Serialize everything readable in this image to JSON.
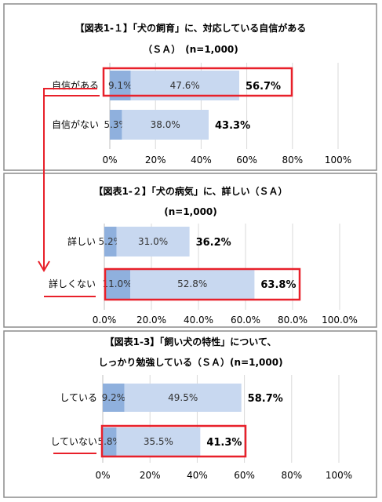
{
  "colors": {
    "seg1": "#8fb0dd",
    "seg2": "#c8d8f0",
    "highlight": "#e8202a",
    "grid": "#d9d9d9"
  },
  "chart_data": [
    {
      "type": "bar",
      "orientation": "horizontal",
      "stacked": true,
      "title_lines": [
        "【図表1-１】「犬の飼育」に、対応している自信がある",
        "（ＳＡ）　(n=1,000)"
      ],
      "categories": [
        "自信がある",
        "自信がない"
      ],
      "series": [
        {
          "values": [
            9.1,
            5.3
          ],
          "labels": [
            "9.1%",
            "5.3%"
          ]
        },
        {
          "values": [
            47.6,
            38.0
          ],
          "labels": [
            "47.6%",
            "38.0%"
          ]
        }
      ],
      "totals": [
        "56.7%",
        "43.3%"
      ],
      "highlight_category": 0,
      "xlim": [
        0,
        100
      ],
      "xticks": [
        0,
        20,
        40,
        60,
        80,
        100
      ],
      "xtick_labels": [
        "0%",
        "20%",
        "40%",
        "60%",
        "80%",
        "100%"
      ],
      "grid": true
    },
    {
      "type": "bar",
      "orientation": "horizontal",
      "stacked": true,
      "title_lines": [
        "【図表1-２】「犬の病気」に、詳しい（ＳＡ）",
        "(n=1,000)"
      ],
      "categories": [
        "詳しい",
        "詳しくない"
      ],
      "series": [
        {
          "values": [
            5.2,
            11.0
          ],
          "labels": [
            "5.2%",
            "11.0%"
          ]
        },
        {
          "values": [
            31.0,
            52.8
          ],
          "labels": [
            "31.0%",
            "52.8%"
          ]
        }
      ],
      "totals": [
        "36.2%",
        "63.8%"
      ],
      "highlight_category": 1,
      "xlim": [
        0,
        100
      ],
      "xticks": [
        0,
        20,
        40,
        60,
        80,
        100
      ],
      "xtick_labels": [
        "0.0%",
        "20.0%",
        "40.0%",
        "60.0%",
        "80.0%",
        "100.0%"
      ],
      "grid": true
    },
    {
      "type": "bar",
      "orientation": "horizontal",
      "stacked": true,
      "title_lines": [
        "【図表1-3】「飼い犬の特性」について、",
        "しっかり勉強している（ＳＡ）(n=1,000)"
      ],
      "categories": [
        "している",
        "していない"
      ],
      "series": [
        {
          "values": [
            9.2,
            5.8
          ],
          "labels": [
            "9.2%",
            "5.8%"
          ]
        },
        {
          "values": [
            49.5,
            35.5
          ],
          "labels": [
            "49.5%",
            "35.5%"
          ]
        }
      ],
      "totals": [
        "58.7%",
        "41.3%"
      ],
      "highlight_category": 1,
      "xlim": [
        0,
        100
      ],
      "xticks": [
        0,
        20,
        40,
        60,
        80,
        100
      ],
      "xtick_labels": [
        "0%",
        "20%",
        "40%",
        "60%",
        "80%",
        "100%"
      ],
      "grid": true
    }
  ]
}
